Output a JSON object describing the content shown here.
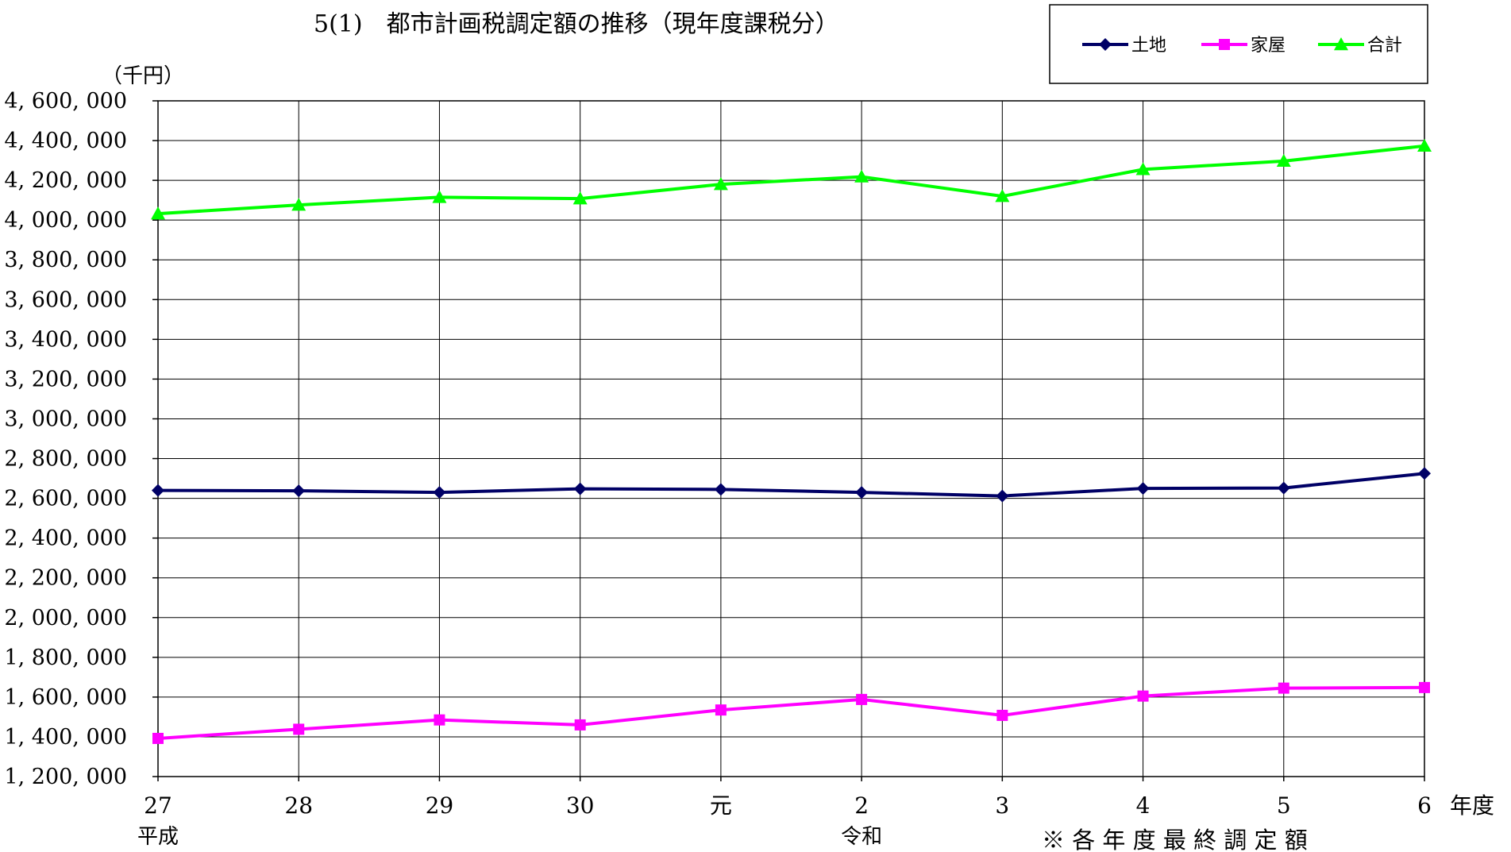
{
  "chart_data": {
    "type": "line",
    "title": "5(1)　都市計画税調定額の推移（現年度課税分）",
    "unit_label": "（千円）",
    "x_axis_suffix": "年度",
    "note": "※ 各 年 度 最 終 調 定 額",
    "era_labels": [
      {
        "text": "平成",
        "at": 0
      },
      {
        "text": "令和",
        "at": 5
      }
    ],
    "categories": [
      "27",
      "28",
      "29",
      "30",
      "元",
      "2",
      "3",
      "4",
      "5",
      "6"
    ],
    "ylim": [
      1200000,
      4600000
    ],
    "ytick_step": 200000,
    "grid": true,
    "legend_position": "top-right",
    "series": [
      {
        "name": "土地",
        "color": "#000066",
        "marker": "diamond",
        "values": [
          2640000,
          2638000,
          2630000,
          2648000,
          2645000,
          2630000,
          2612000,
          2650000,
          2652000,
          2725000
        ]
      },
      {
        "name": "家屋",
        "color": "#ff00ff",
        "marker": "square",
        "values": [
          1392000,
          1438000,
          1485000,
          1460000,
          1535000,
          1588000,
          1508000,
          1605000,
          1645000,
          1648000
        ]
      },
      {
        "name": "合計",
        "color": "#00ff00",
        "marker": "triangle",
        "values": [
          4032000,
          4076000,
          4115000,
          4108000,
          4180000,
          4218000,
          4120000,
          4255000,
          4297000,
          4373000
        ]
      }
    ]
  }
}
